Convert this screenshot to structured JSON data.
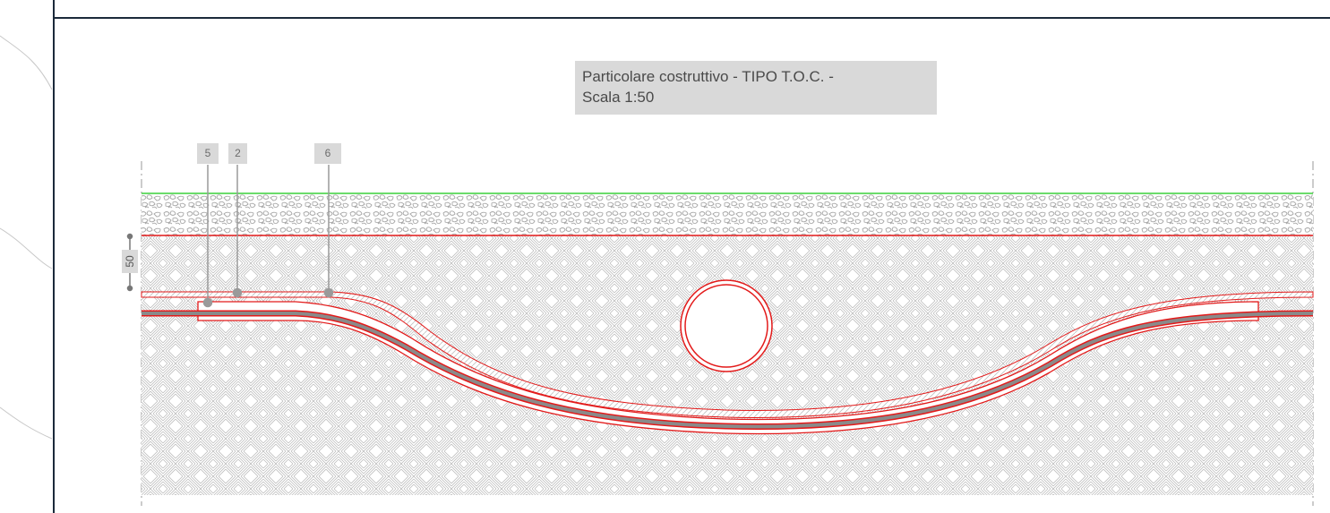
{
  "title": {
    "line1": "Particolare costruttivo - TIPO T.O.C. -",
    "line2": "Scala 1:50"
  },
  "callouts": [
    {
      "label": "5"
    },
    {
      "label": "2"
    },
    {
      "label": "6"
    }
  ],
  "dimension": {
    "value": "50"
  },
  "colors": {
    "surface_line": "#3ad13a",
    "red_outline": "#e31a1a",
    "frame": "#1b2a3a",
    "label_bg": "#d9d9d9",
    "hatch": "#b9b9b9",
    "pipe_fill": "#8a8a8a"
  }
}
